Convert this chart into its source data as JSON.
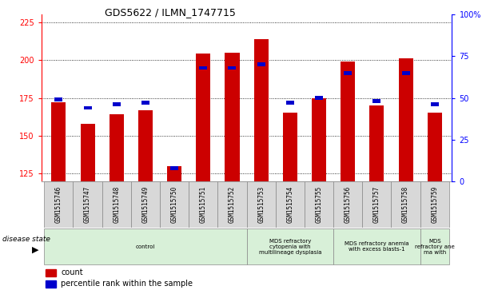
{
  "title": "GDS5622 / ILMN_1747715",
  "samples": [
    "GSM1515746",
    "GSM1515747",
    "GSM1515748",
    "GSM1515749",
    "GSM1515750",
    "GSM1515751",
    "GSM1515752",
    "GSM1515753",
    "GSM1515754",
    "GSM1515755",
    "GSM1515756",
    "GSM1515757",
    "GSM1515758",
    "GSM1515759"
  ],
  "counts": [
    172,
    158,
    164,
    167,
    130,
    204,
    205,
    214,
    165,
    175,
    199,
    170,
    201,
    165
  ],
  "percentiles": [
    49,
    44,
    46,
    47,
    8,
    68,
    68,
    70,
    47,
    50,
    65,
    48,
    65,
    46
  ],
  "bar_color": "#cc0000",
  "percentile_color": "#0000cc",
  "ylim_left": [
    120,
    230
  ],
  "ylim_right": [
    0,
    100
  ],
  "yticks_left": [
    125,
    150,
    175,
    200,
    225
  ],
  "yticks_right": [
    0,
    25,
    50,
    75,
    100
  ],
  "disease_groups": [
    {
      "label": "control",
      "start": 0,
      "end": 7,
      "color": "#d8f0d8"
    },
    {
      "label": "MDS refractory\ncytopenia with\nmultilineage dysplasia",
      "start": 7,
      "end": 10,
      "color": "#d8f0d8"
    },
    {
      "label": "MDS refractory anemia\nwith excess blasts-1",
      "start": 10,
      "end": 13,
      "color": "#d8f0d8"
    },
    {
      "label": "MDS\nrefractory ane\nma with",
      "start": 13,
      "end": 14,
      "color": "#d8f0d8"
    }
  ],
  "disease_state_label": "disease state",
  "legend_count": "count",
  "legend_percentile": "percentile rank within the sample",
  "background_color": "#ffffff",
  "sample_box_color": "#d8d8d8",
  "bar_width": 0.5
}
